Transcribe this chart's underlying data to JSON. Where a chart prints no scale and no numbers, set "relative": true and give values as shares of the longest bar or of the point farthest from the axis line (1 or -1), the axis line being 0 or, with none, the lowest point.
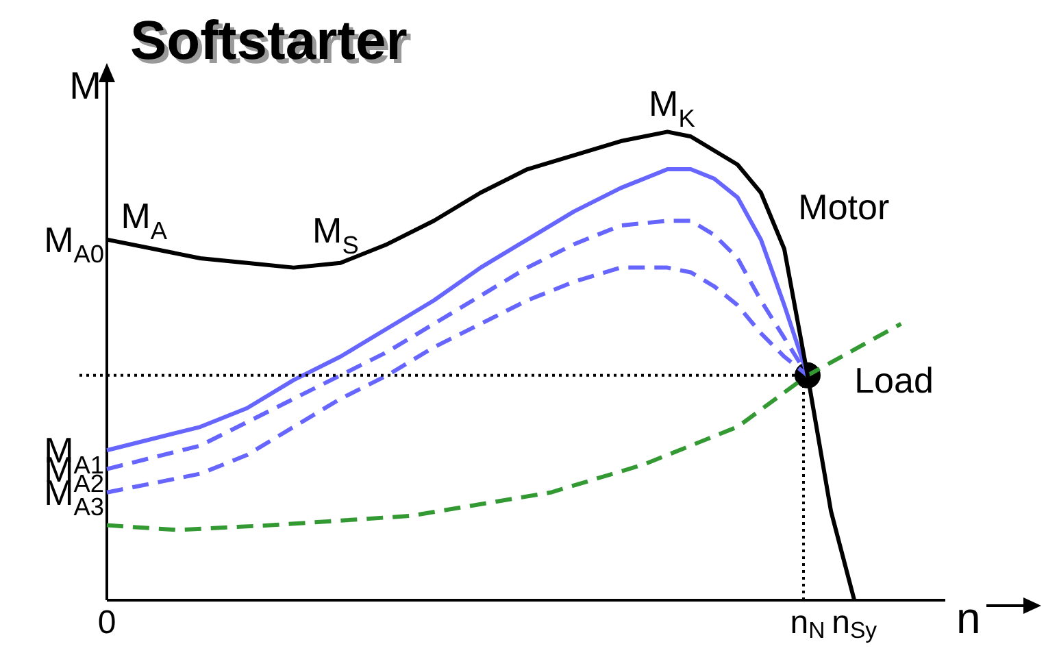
{
  "chart_data": {
    "type": "line",
    "title": "Softstarter",
    "xlabel": "n",
    "ylabel": "M",
    "relative": true,
    "tick_labels": "x",
    "legend": false,
    "marker": "none",
    "categories": [
      "0",
      null,
      null,
      null,
      null,
      null,
      null,
      null,
      null,
      null,
      null,
      null,
      null,
      null,
      null,
      null,
      null,
      null,
      null,
      null,
      null,
      null,
      null,
      null,
      null,
      null,
      null,
      null,
      null,
      null,
      "n$_{N}$",
      null,
      "n$_{Sy}$",
      null,
      null,
      null,
      null,
      null,
      null,
      null,
      null
    ],
    "series": [
      {
        "color": "#000000",
        "line_style": "solid",
        "values": [
          0.77,
          null,
          0.75,
          null,
          0.73,
          null,
          0.72,
          null,
          0.71,
          null,
          0.72,
          null,
          0.76,
          null,
          0.81,
          null,
          0.87,
          null,
          0.92,
          null,
          0.95,
          null,
          0.98,
          null,
          1,
          0.99,
          0.96,
          0.93,
          0.87,
          0.75,
          0.48,
          0.19,
          0,
          null,
          null,
          null,
          null,
          null,
          null,
          null,
          null
        ]
      },
      {
        "color": "#6666ff",
        "line_style": "solid",
        "values": [
          0.32,
          null,
          null,
          null,
          0.37,
          null,
          0.41,
          null,
          0.47,
          null,
          0.52,
          null,
          0.58,
          null,
          0.64,
          null,
          0.71,
          null,
          0.77,
          null,
          0.83,
          null,
          0.88,
          null,
          0.92,
          0.92,
          0.9,
          0.86,
          0.77,
          0.63,
          0.48,
          null,
          null,
          null,
          null,
          null,
          null,
          null,
          null,
          null,
          null
        ]
      },
      {
        "color": "#6666ff",
        "line_style": "dashed",
        "values": [
          0.28,
          null,
          null,
          null,
          0.33,
          null,
          0.38,
          null,
          0.43,
          null,
          0.48,
          null,
          0.53,
          null,
          0.59,
          null,
          0.65,
          null,
          0.71,
          null,
          0.76,
          null,
          0.8,
          null,
          0.81,
          0.81,
          0.78,
          0.73,
          0.64,
          0.56,
          0.48,
          null,
          null,
          null,
          null,
          null,
          null,
          null,
          null,
          null,
          null
        ]
      },
      {
        "color": "#6666ff",
        "line_style": "dashed",
        "values": [
          0.23,
          null,
          null,
          null,
          0.27,
          null,
          0.31,
          null,
          0.37,
          null,
          0.43,
          null,
          0.48,
          null,
          0.54,
          null,
          0.59,
          null,
          0.64,
          null,
          0.68,
          null,
          0.71,
          null,
          0.71,
          0.7,
          0.67,
          0.63,
          0.57,
          0.52,
          0.48,
          null,
          null,
          null,
          null,
          null,
          null,
          null,
          null,
          null,
          null
        ]
      },
      {
        "color": "#339933",
        "line_style": "dashed",
        "values": [
          0.16,
          null,
          null,
          0.15,
          null,
          null,
          null,
          0.16,
          null,
          null,
          null,
          null,
          null,
          0.18,
          null,
          null,
          null,
          null,
          null,
          0.23,
          null,
          null,
          null,
          0.29,
          null,
          null,
          null,
          0.37,
          null,
          null,
          0.48,
          null,
          null,
          null,
          0.59,
          null,
          null,
          null,
          null,
          null,
          null
        ]
      },
      {
        "type": "scatter",
        "color": "#000000",
        "marker": "circle",
        "values": [
          null,
          null,
          null,
          null,
          null,
          null,
          null,
          null,
          null,
          null,
          null,
          null,
          null,
          null,
          null,
          null,
          null,
          null,
          null,
          null,
          null,
          null,
          null,
          null,
          null,
          null,
          null,
          null,
          null,
          null,
          0.48,
          null,
          null,
          null,
          null,
          null,
          null,
          null,
          null,
          null,
          null
        ]
      }
    ],
    "ref_lines": [
      {
        "axis": "y",
        "value": 0.48,
        "color": "#000000",
        "line_style": "dotted"
      },
      {
        "axis": "x",
        "value": "n$_{N}$",
        "color": "#000000",
        "line_style": "dotted"
      }
    ],
    "annotations": [
      {
        "text": "M$_{A0}$",
        "x": "0",
        "y": 0.77
      },
      {
        "text": "M$_{A1}$",
        "x": "0",
        "y": 0.32
      },
      {
        "text": "M$_{A2}$",
        "x": "0",
        "y": 0.28
      },
      {
        "text": "M$_{A3}$",
        "x": "0",
        "y": 0.23
      },
      "M$_{A}$",
      "M$_{S}$",
      "M$_{K}$",
      "Motor",
      "Load"
    ]
  }
}
